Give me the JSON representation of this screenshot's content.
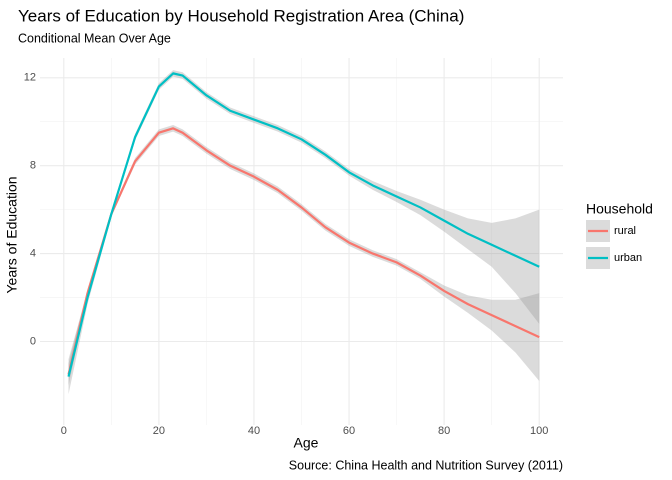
{
  "chart_data": {
    "type": "line",
    "title": "Years of Education by Household Registration Area (China)",
    "subtitle": "Conditional Mean Over Age",
    "x_label": "Age",
    "y_label": "Years of Education",
    "caption": "Source: China Health and Nutrition Survey (2011)",
    "legend_title": "Household",
    "legend_position": "right",
    "grid": true,
    "minor_grid": true,
    "band_color": "#999999",
    "x": [
      1,
      5,
      10,
      15,
      20,
      23,
      25,
      30,
      35,
      40,
      45,
      50,
      55,
      60,
      65,
      70,
      75,
      80,
      85,
      90,
      95,
      100
    ],
    "xlim": [
      -5,
      105
    ],
    "xticks": [
      0,
      20,
      40,
      60,
      80,
      100
    ],
    "ylim": [
      -3.8,
      12.9
    ],
    "yticks": [
      0,
      4,
      8,
      12
    ],
    "series": [
      {
        "name": "rural",
        "color": "#F8766D",
        "values": [
          -1.5,
          2.2,
          5.8,
          8.2,
          9.5,
          9.7,
          9.5,
          8.7,
          8.0,
          7.5,
          6.9,
          6.1,
          5.2,
          4.5,
          4.0,
          3.6,
          3.0,
          2.3,
          1.7,
          1.2,
          0.7,
          0.2
        ],
        "lower": [
          -2.0,
          2.0,
          5.7,
          8.05,
          9.35,
          9.55,
          9.35,
          8.55,
          7.85,
          7.35,
          6.75,
          5.95,
          5.05,
          4.35,
          3.85,
          3.45,
          2.85,
          2.05,
          1.3,
          0.5,
          -0.5,
          -1.8
        ],
        "upper": [
          -1.0,
          2.4,
          5.9,
          8.35,
          9.65,
          9.85,
          9.65,
          8.85,
          8.15,
          7.65,
          7.05,
          6.25,
          5.35,
          4.65,
          4.15,
          3.75,
          3.15,
          2.55,
          2.1,
          1.9,
          1.9,
          2.2
        ]
      },
      {
        "name": "urban",
        "color": "#00BFC4",
        "values": [
          -1.6,
          2.0,
          5.8,
          9.3,
          11.6,
          12.2,
          12.1,
          11.2,
          10.5,
          10.1,
          9.7,
          9.2,
          8.5,
          7.7,
          7.1,
          6.6,
          6.1,
          5.5,
          4.9,
          4.4,
          3.9,
          3.4
        ],
        "lower": [
          -2.4,
          1.7,
          5.65,
          9.15,
          11.45,
          12.05,
          11.95,
          11.05,
          10.35,
          9.95,
          9.55,
          9.05,
          8.35,
          7.55,
          6.9,
          6.35,
          5.75,
          5.0,
          4.2,
          3.4,
          2.2,
          0.8
        ],
        "upper": [
          -0.8,
          2.3,
          5.95,
          9.45,
          11.75,
          12.35,
          12.25,
          11.35,
          10.65,
          10.25,
          9.85,
          9.35,
          8.65,
          7.85,
          7.3,
          6.85,
          6.45,
          6.0,
          5.6,
          5.4,
          5.6,
          6.0
        ]
      }
    ]
  }
}
